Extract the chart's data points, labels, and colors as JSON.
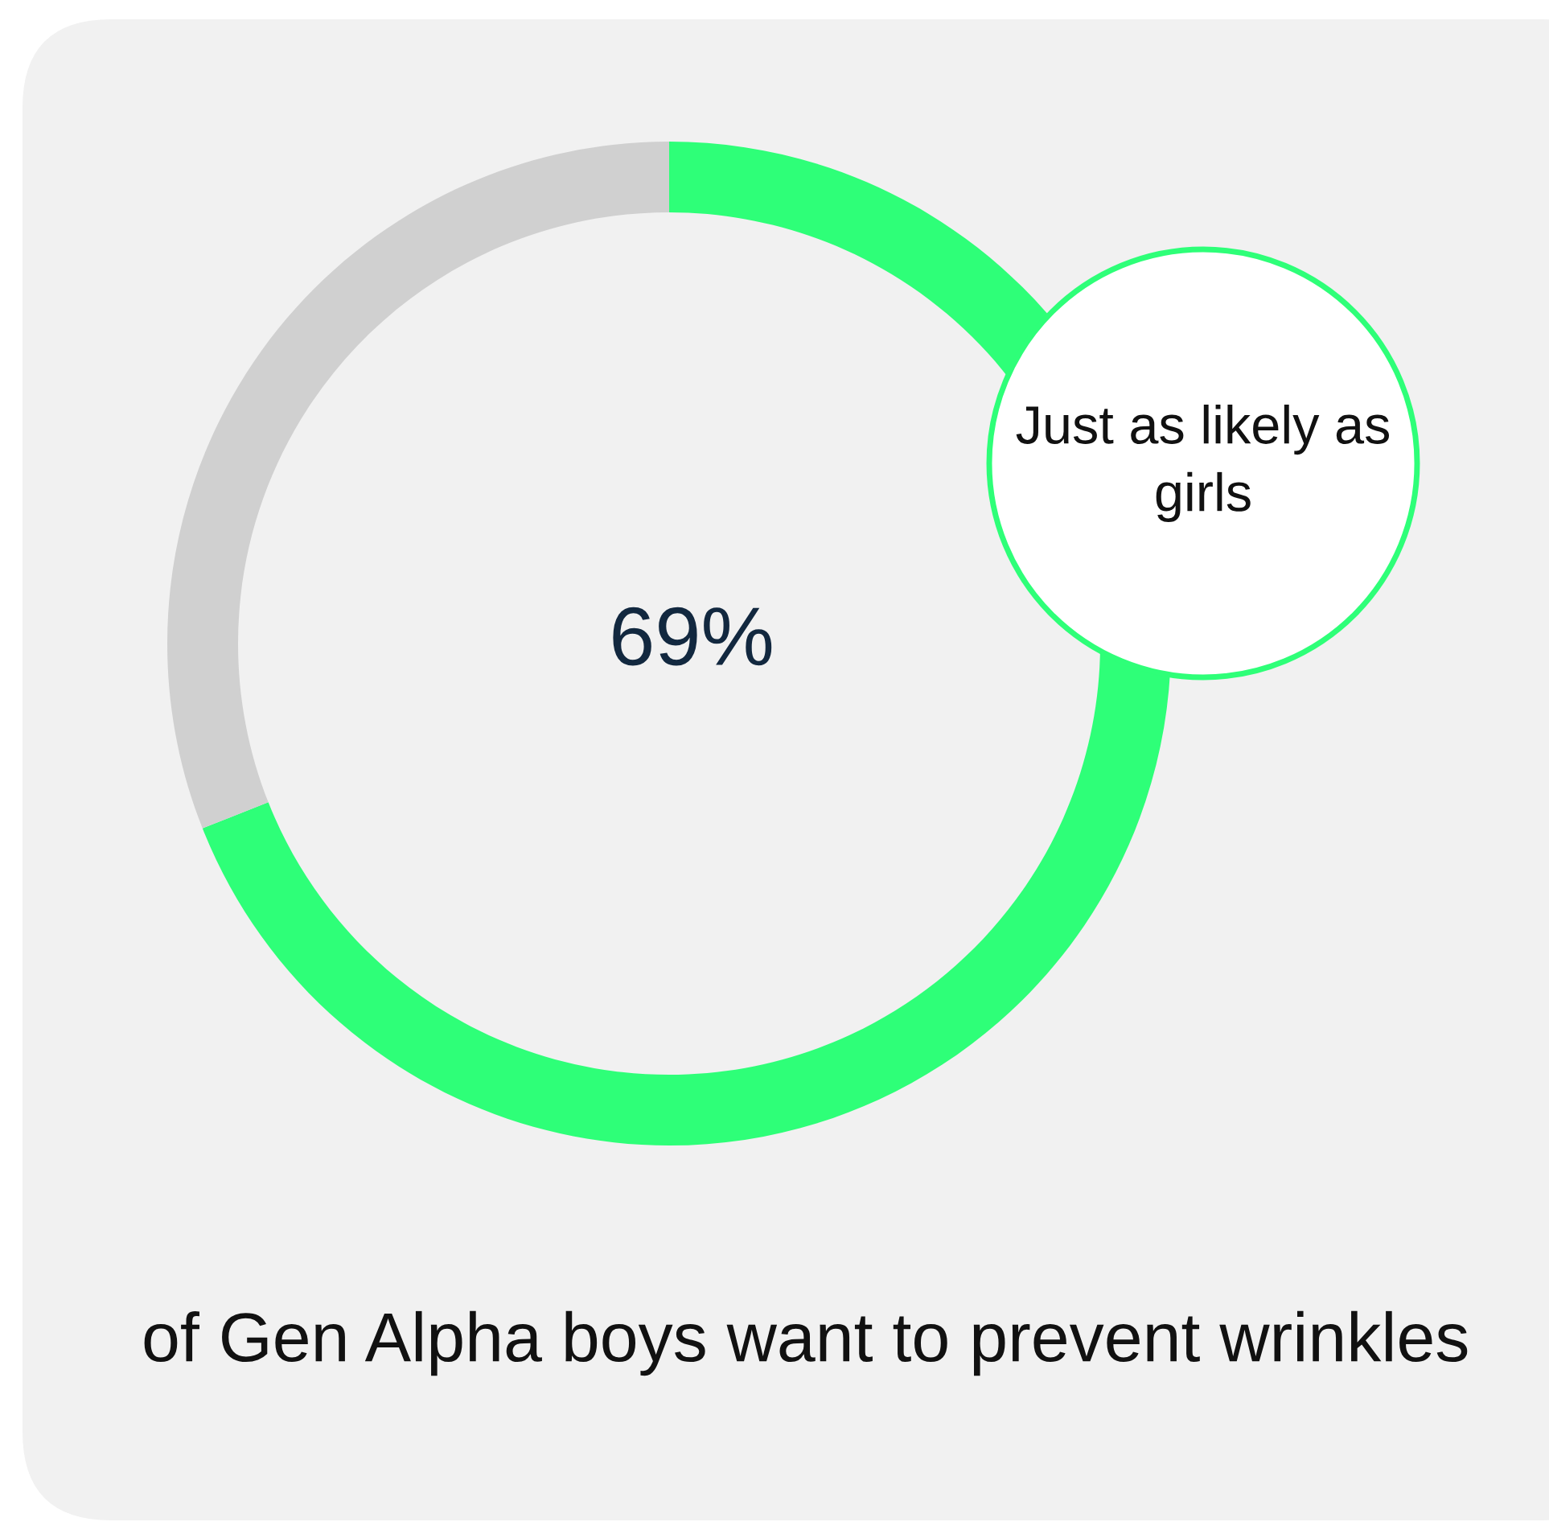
{
  "chart_data": {
    "type": "donut",
    "categories": [
      null,
      null
    ],
    "values": [
      69,
      31
    ],
    "colors": [
      "#2eff78",
      "#d0d0d0"
    ],
    "value_labels": [
      "69%",
      null
    ],
    "annotations": [
      "Just as likely as girls",
      "of Gen Alpha boys want to prevent wrinkles"
    ]
  }
}
